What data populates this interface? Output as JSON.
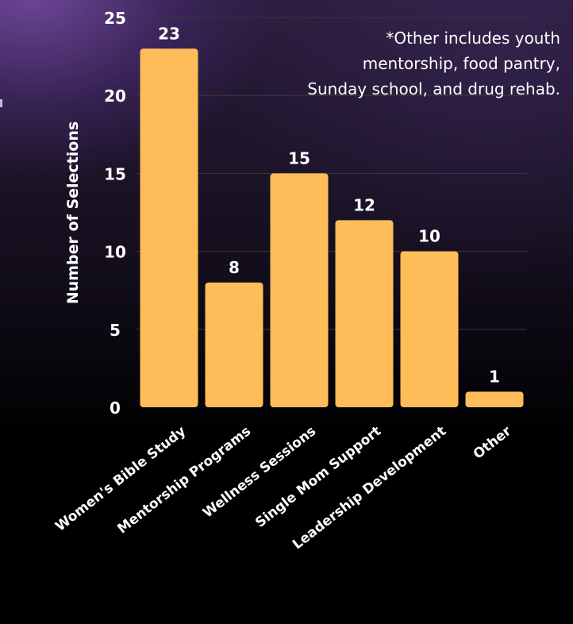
{
  "chart_data": {
    "type": "bar",
    "ylabel": "Number of Selections",
    "xlabel": "",
    "ylim": [
      0,
      25
    ],
    "yticks": [
      0,
      5,
      10,
      15,
      20,
      25
    ],
    "grid": true,
    "categories": [
      "Women's Bible Study",
      "Mentorship Programs",
      "Wellness Sessions",
      "Single Mom Support",
      "Leadership Development",
      "Other"
    ],
    "values": [
      23,
      8,
      15,
      12,
      10,
      1
    ],
    "bar_color": "#ffbd59",
    "annotation": "*Other includes youth mentorship, food pantry, Sunday school, and drug rehab."
  },
  "colors": {
    "bar": "#ffbd59",
    "text": "#ffffff",
    "grid": "#3a3a3a"
  }
}
